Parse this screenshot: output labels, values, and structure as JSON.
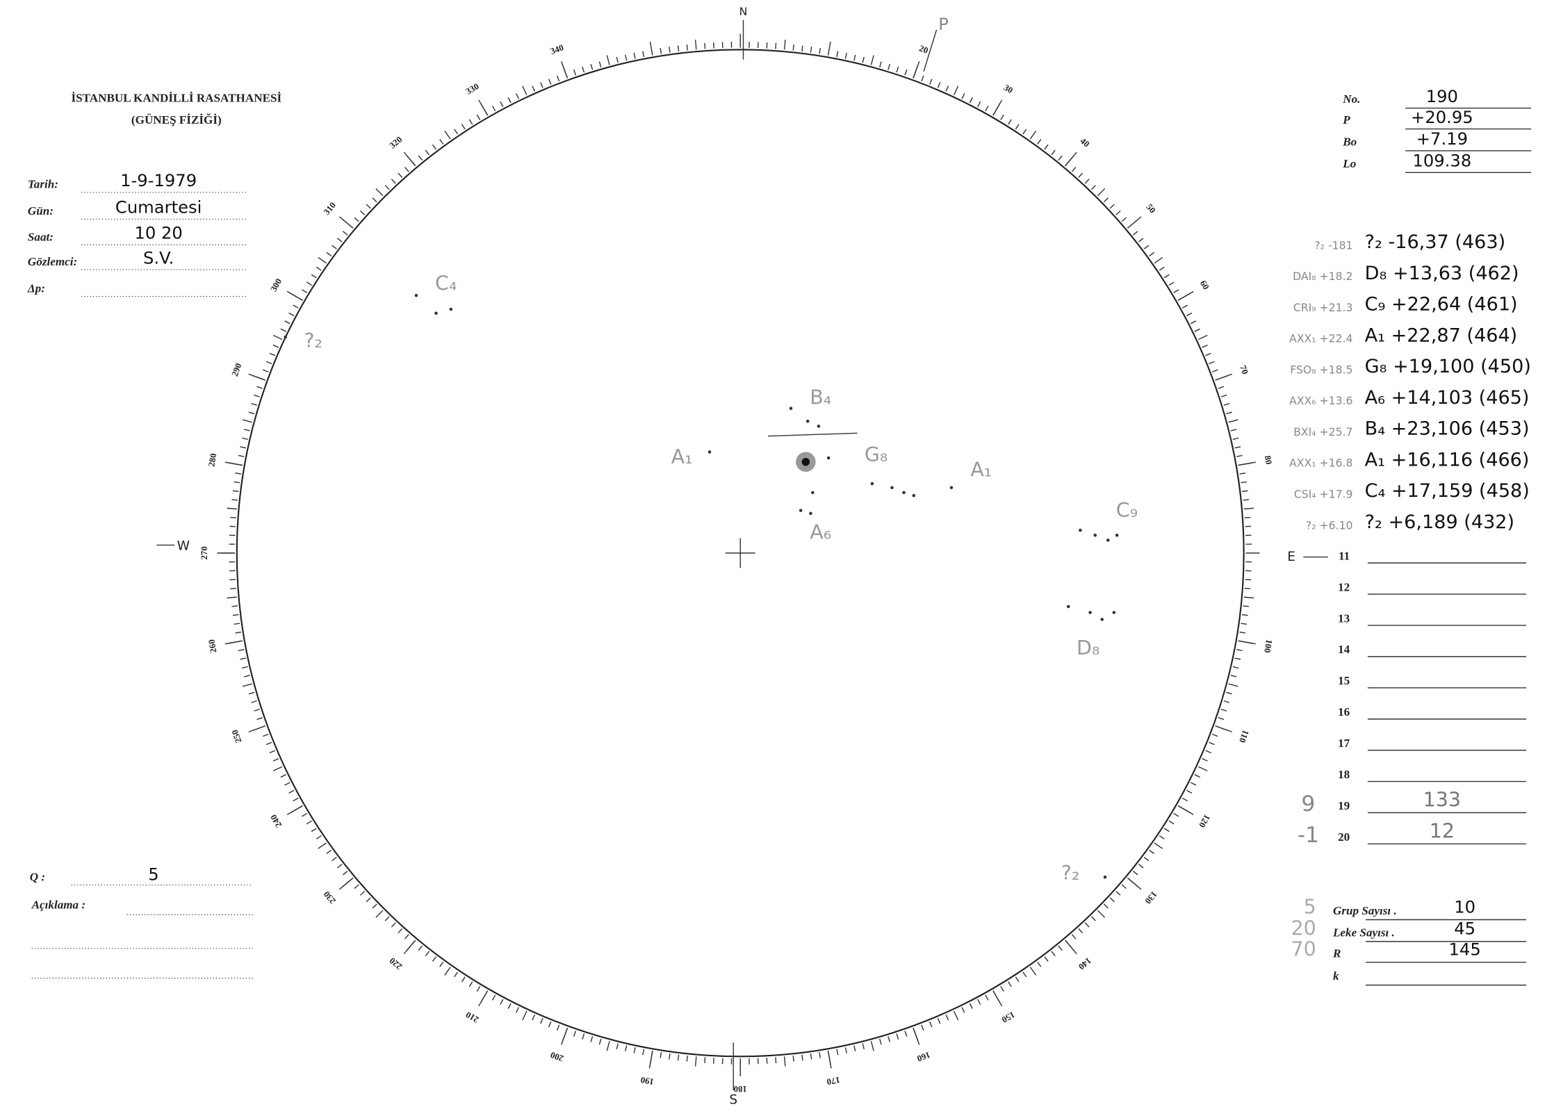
{
  "header": {
    "title": "İSTANBUL KANDİLLİ RASATHANESİ",
    "subtitle": "(GÜNEŞ FİZİĞİ)"
  },
  "fields": [
    {
      "label": "Tarih:",
      "value": "1-9-1979"
    },
    {
      "label": "Gün:",
      "value": "Cumartesi"
    },
    {
      "label": "Saat:",
      "value": "10 20"
    },
    {
      "label": "Gözlemci:",
      "value": "S.V."
    },
    {
      "label": "Δp:"
    }
  ],
  "ephemeris": [
    {
      "label": "No.",
      "value": "190"
    },
    {
      "label": "P",
      "value": "+20.95"
    },
    {
      "label": "Bo",
      "value": "+7.19"
    },
    {
      "label": "Lo",
      "value": "109.38"
    }
  ],
  "groups": [
    {
      "note": "?₂ -181",
      "entry": "?₂ -16,37 (463)"
    },
    {
      "note": "DAI₈ +18.2",
      "entry": "D₈ +13,63 (462)"
    },
    {
      "note": "CRI₉ +21.3",
      "entry": "C₉ +22,64 (461)"
    },
    {
      "note": "AXX₁ +22.4",
      "entry": "A₁ +22,87 (464)"
    },
    {
      "note": "FSO₈ +18.5",
      "entry": "G₈ +19,100 (450)"
    },
    {
      "note": "AXX₆ +13.6",
      "entry": "A₆ +14,103 (465)"
    },
    {
      "note": "BXI₄ +25.7",
      "entry": "B₄ +23,106 (453)"
    },
    {
      "note": "AXX₁ +16.8",
      "entry": "A₁ +16,116 (466)"
    },
    {
      "note": "CSI₄ +17.9",
      "entry": "C₄ +17,159 (458)"
    },
    {
      "note": "?₂ +6.10",
      "entry": "?₂ +6,189 (432)"
    }
  ],
  "rows": [
    {
      "n": "11"
    },
    {
      "n": "12"
    },
    {
      "n": "13"
    },
    {
      "n": "14"
    },
    {
      "n": "15"
    },
    {
      "n": "16"
    },
    {
      "n": "17"
    },
    {
      "n": "18"
    },
    {
      "n": "19",
      "note": "9",
      "value": "133"
    },
    {
      "n": "20",
      "note": "-1",
      "value": "12"
    }
  ],
  "q": {
    "label": "Q :",
    "value": "5"
  },
  "remark": {
    "label": "Açıklama :"
  },
  "totals": [
    {
      "note": "5",
      "label": "Grup Sayısı .",
      "value": "10"
    },
    {
      "note": "20",
      "label": "Leke Sayısı .",
      "value": "45"
    },
    {
      "note": "70",
      "label": "R",
      "value": "145"
    },
    {
      "label": "k"
    }
  ],
  "compass": {
    "north": "N",
    "south": "S",
    "west": "W",
    "east": "E",
    "pole": "P"
  },
  "dial": {
    "labels": [
      20,
      30,
      40,
      50,
      60,
      70,
      80,
      100,
      110,
      120,
      130,
      140,
      150,
      160,
      170,
      180,
      190,
      200,
      210,
      220,
      230,
      240,
      250,
      260,
      270,
      280,
      290,
      300,
      310,
      320,
      330,
      340
    ]
  },
  "spots": [
    "C₄",
    "?₂",
    "B₄",
    "A₁",
    "G₈",
    "A₁",
    "A₆",
    "C₉",
    "D₈",
    "?₂"
  ]
}
